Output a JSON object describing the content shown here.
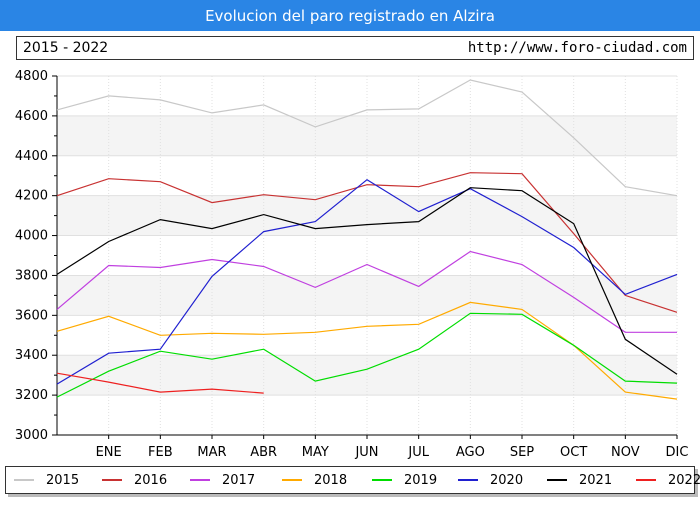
{
  "header": {
    "title": "Evolucion del paro registrado en Alzira"
  },
  "info": {
    "period": "2015 - 2022",
    "url": "http://www.foro-ciudad.com"
  },
  "chart_data": {
    "type": "line",
    "categories": [
      "",
      "ENE",
      "FEB",
      "MAR",
      "ABR",
      "MAY",
      "JUN",
      "JUL",
      "AGO",
      "SEP",
      "OCT",
      "NOV",
      "DIC"
    ],
    "ylim": [
      3000,
      4800
    ],
    "yticks": [
      "3000",
      "3200",
      "3400",
      "3600",
      "3800",
      "4000",
      "4200",
      "4400",
      "4600",
      "4800"
    ],
    "grid": true,
    "legend_position": "bottom",
    "series": [
      {
        "name": "2015",
        "color": "#c8c8c8",
        "values": [
          4630,
          4700,
          4680,
          4615,
          4655,
          4545,
          4630,
          4635,
          4780,
          4720,
          4490,
          4245,
          4200
        ]
      },
      {
        "name": "2016",
        "color": "#c83232",
        "values": [
          4200,
          4285,
          4270,
          4165,
          4205,
          4180,
          4255,
          4245,
          4315,
          4310,
          4010,
          3700,
          3615
        ]
      },
      {
        "name": "2017",
        "color": "#c040e0",
        "values": [
          3630,
          3850,
          3840,
          3880,
          3845,
          3740,
          3855,
          3745,
          3920,
          3855,
          3690,
          3515,
          3515
        ]
      },
      {
        "name": "2018",
        "color": "#ffaa00",
        "values": [
          3520,
          3595,
          3500,
          3510,
          3505,
          3515,
          3545,
          3555,
          3665,
          3630,
          3450,
          3215,
          3180
        ]
      },
      {
        "name": "2019",
        "color": "#00dd00",
        "values": [
          3190,
          3320,
          3420,
          3380,
          3430,
          3270,
          3330,
          3430,
          3610,
          3605,
          3450,
          3270,
          3260
        ]
      },
      {
        "name": "2020",
        "color": "#2020d0",
        "values": [
          3255,
          3410,
          3430,
          3795,
          4020,
          4070,
          4280,
          4120,
          4235,
          4095,
          3940,
          3705,
          3805
        ]
      },
      {
        "name": "2021",
        "color": "#000000",
        "values": [
          3805,
          3970,
          4080,
          4035,
          4105,
          4035,
          4055,
          4070,
          4240,
          4225,
          4060,
          3480,
          3305
        ]
      },
      {
        "name": "2022",
        "color": "#ee2020",
        "values": [
          3310,
          3265,
          3215,
          3230,
          3210,
          null,
          null,
          null,
          null,
          null,
          null,
          null,
          null
        ]
      }
    ]
  }
}
